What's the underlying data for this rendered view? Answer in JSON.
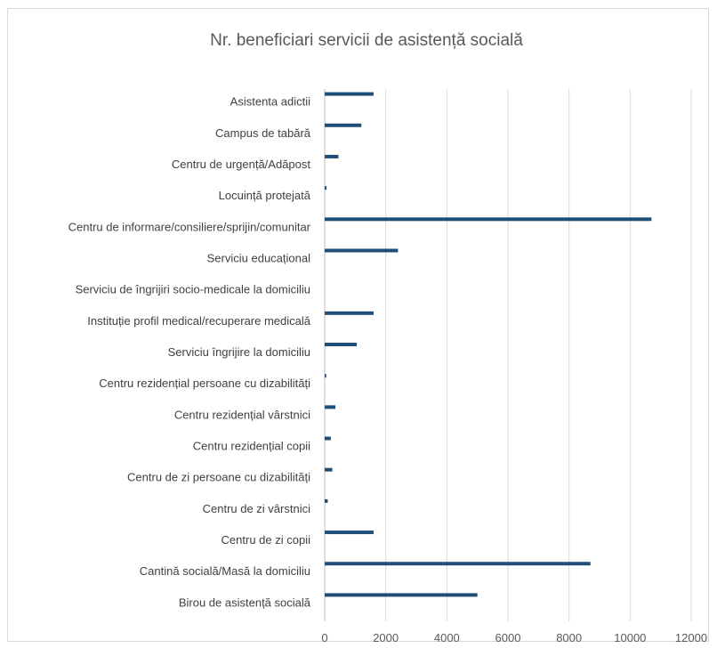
{
  "chart_data": {
    "type": "bar",
    "orientation": "horizontal",
    "title": "Nr. beneficiari servicii de asistență socială",
    "xlabel": "",
    "ylabel": "",
    "xlim": [
      0,
      12000
    ],
    "x_ticks": [
      0,
      2000,
      4000,
      6000,
      8000,
      10000,
      12000
    ],
    "grid": true,
    "legend": "none",
    "bar_color": "#1f4e79",
    "categories": [
      "Asistenta adictii",
      "Campus de tabără",
      "Centru de urgență/Adăpost",
      "Locuință protejată",
      "Centru de informare/consiliere/sprijin/comunitar",
      "Serviciu educațional",
      "Serviciu de îngrijiri socio-medicale la domiciliu",
      "Instituție profil medical/recuperare medicală",
      "Serviciu îngrijire la domiciliu",
      "Centru rezidențial persoane cu dizabilități",
      "Centru rezidențial vârstnici",
      "Centru rezidențial copii",
      "Centru de zi persoane cu dizabilități",
      "Centru de zi vârstnici",
      "Centru de zi copii",
      "Cantină socială/Masă la domiciliu",
      "Birou de asistență socială"
    ],
    "values": [
      1600,
      1200,
      450,
      60,
      10700,
      2400,
      0,
      1600,
      1050,
      50,
      350,
      200,
      250,
      100,
      1600,
      8700,
      5000
    ]
  }
}
